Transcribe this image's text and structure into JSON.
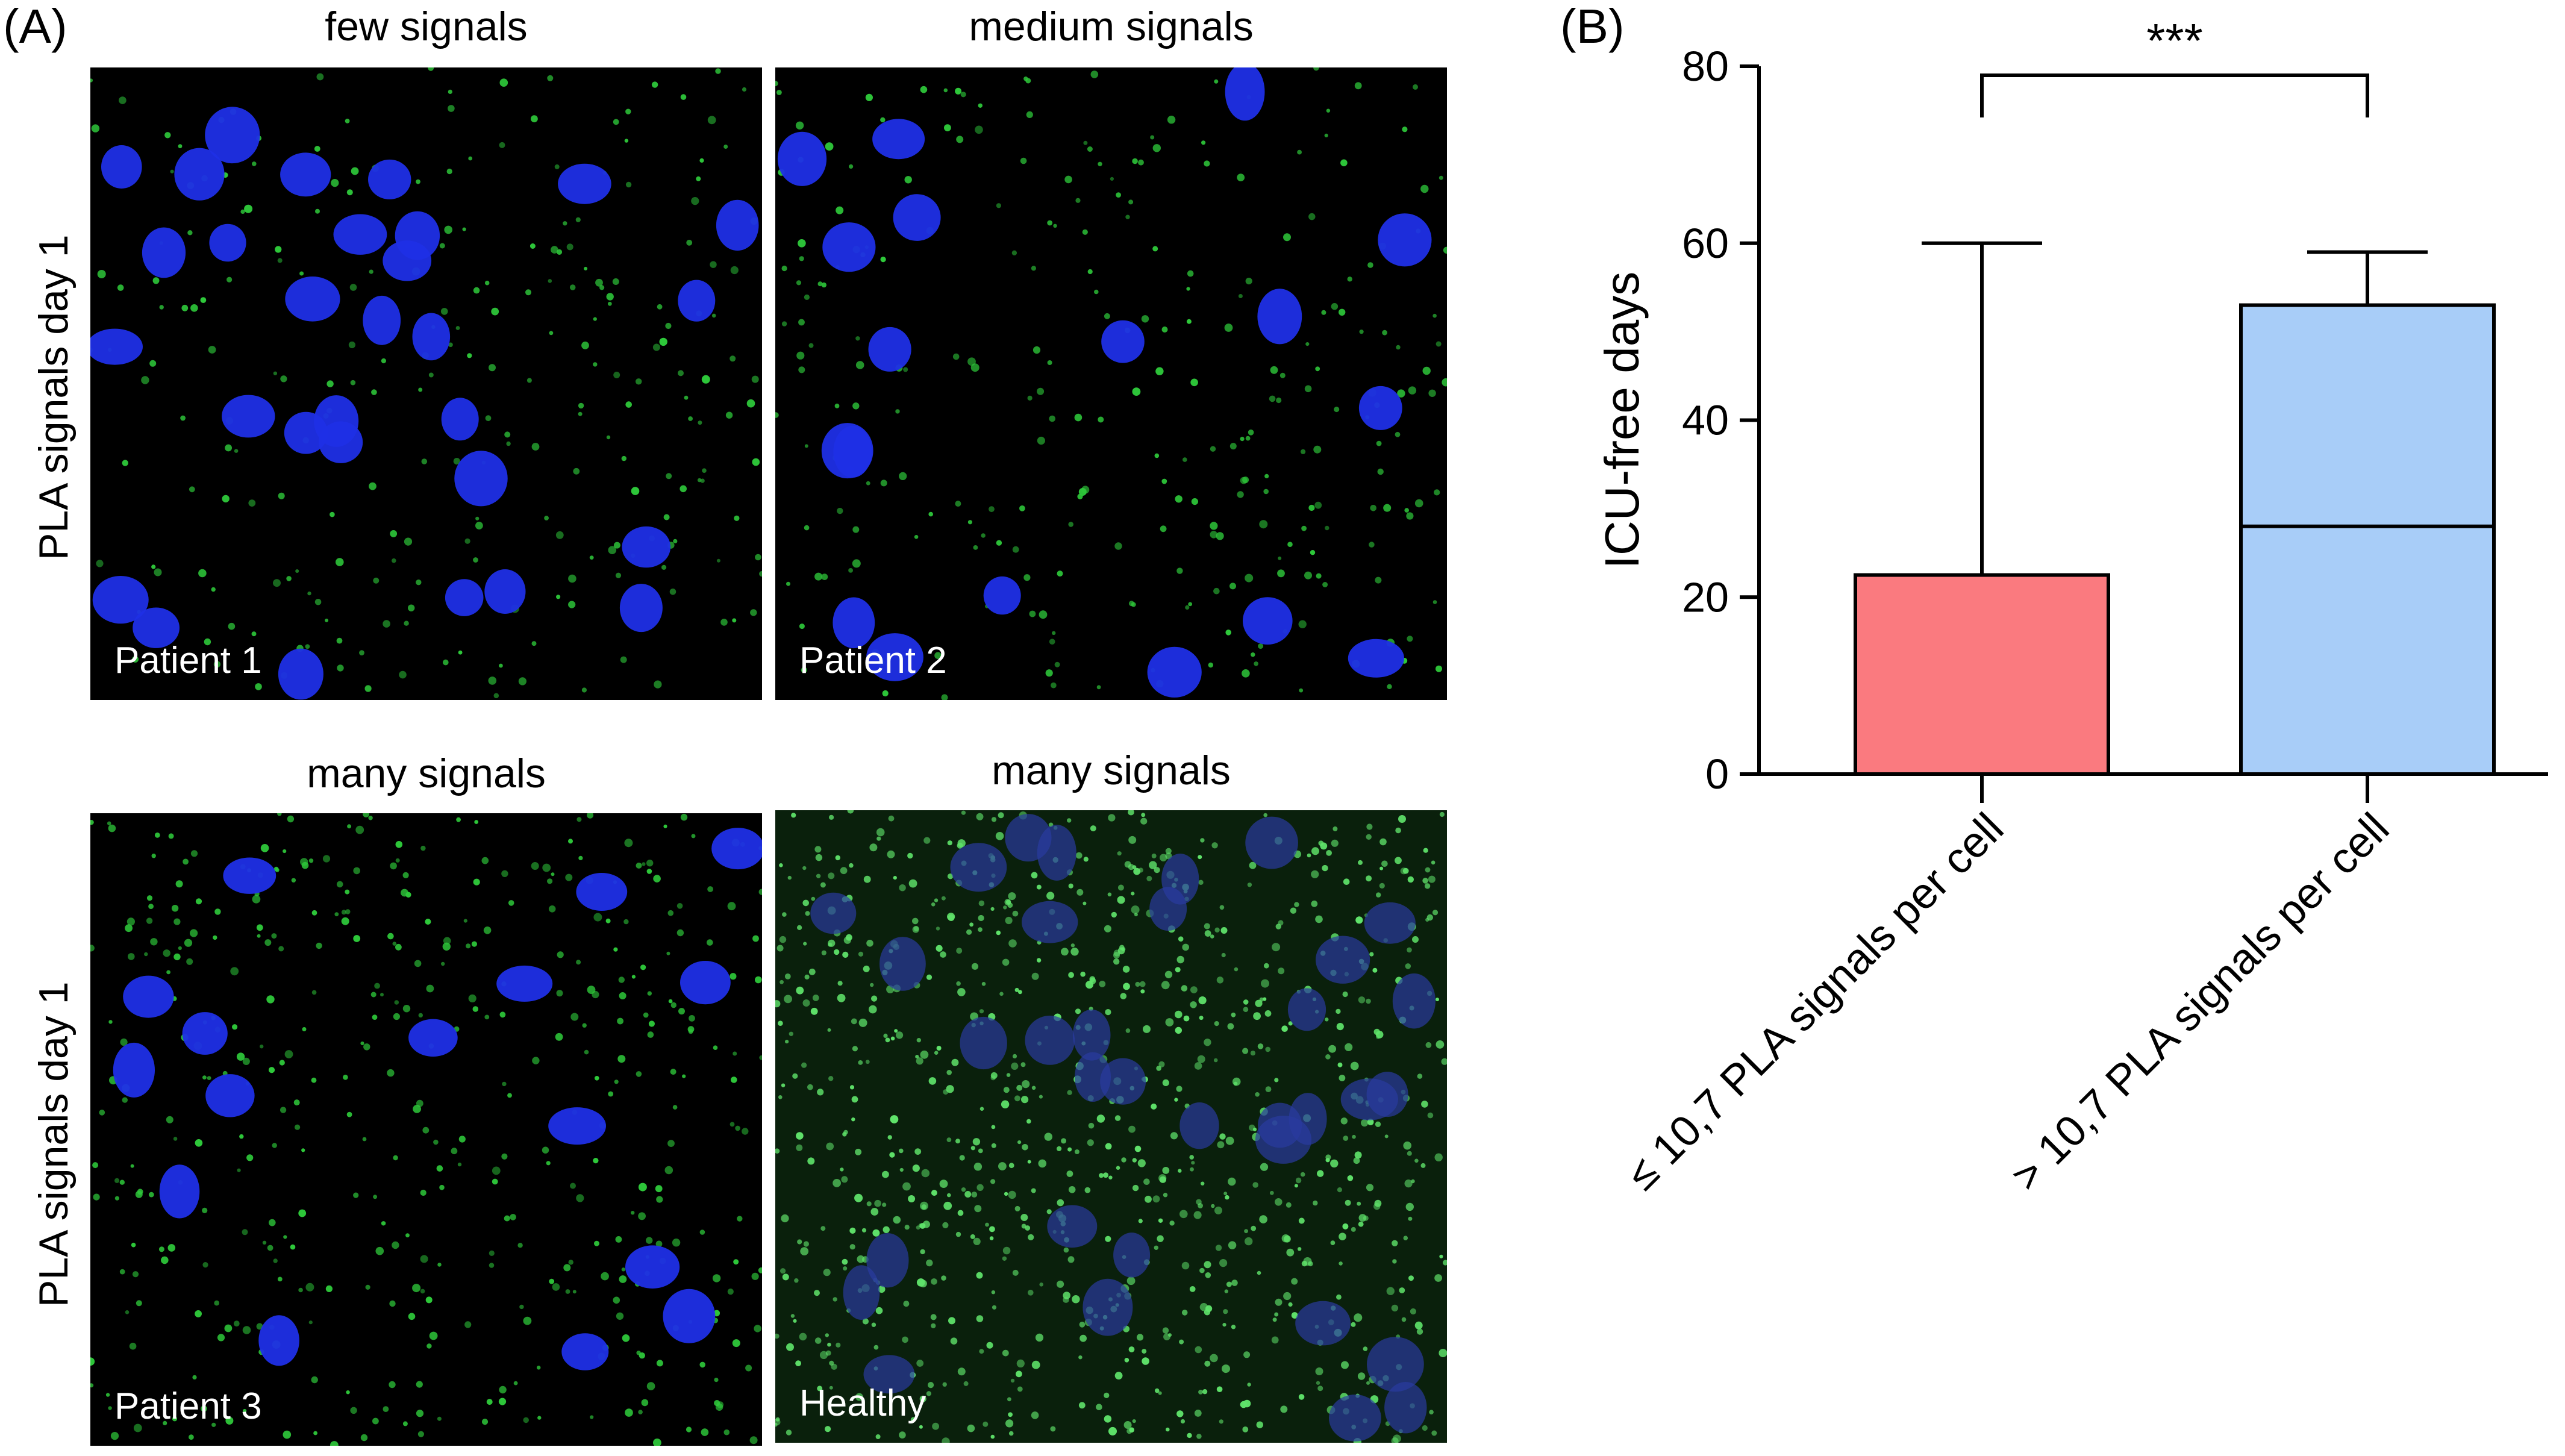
{
  "panel_a": {
    "letter": "(A)",
    "row_labels": [
      "PLA signals day 1",
      "PLA signals day 1"
    ],
    "images": [
      {
        "title": "few signals",
        "label": "Patient 1"
      },
      {
        "title": "medium signals",
        "label": "Patient 2"
      },
      {
        "title": "many signals",
        "label": "Patient 3"
      },
      {
        "title": "many signals",
        "label": "Healthy"
      }
    ]
  },
  "panel_b": {
    "letter": "(B)"
  },
  "chart_data": {
    "type": "bar",
    "title": "",
    "xlabel": "",
    "ylabel": "ICU-free days",
    "ylim": [
      0,
      80
    ],
    "yticks": [
      0,
      20,
      40,
      60,
      80
    ],
    "categories": [
      "≤ 10,7 PLA signals per cell",
      "> 10,7 PLA signals per cell"
    ],
    "series": [
      {
        "values": [
          22.5,
          53
        ],
        "median": [
          null,
          28
        ],
        "error_upper": [
          60,
          59
        ],
        "colors": [
          "#fa7a7f",
          "#a8cdf8"
        ]
      }
    ],
    "annotations": [
      {
        "text": "***",
        "between": [
          0,
          1
        ]
      }
    ],
    "grid": false,
    "legend": "none"
  }
}
